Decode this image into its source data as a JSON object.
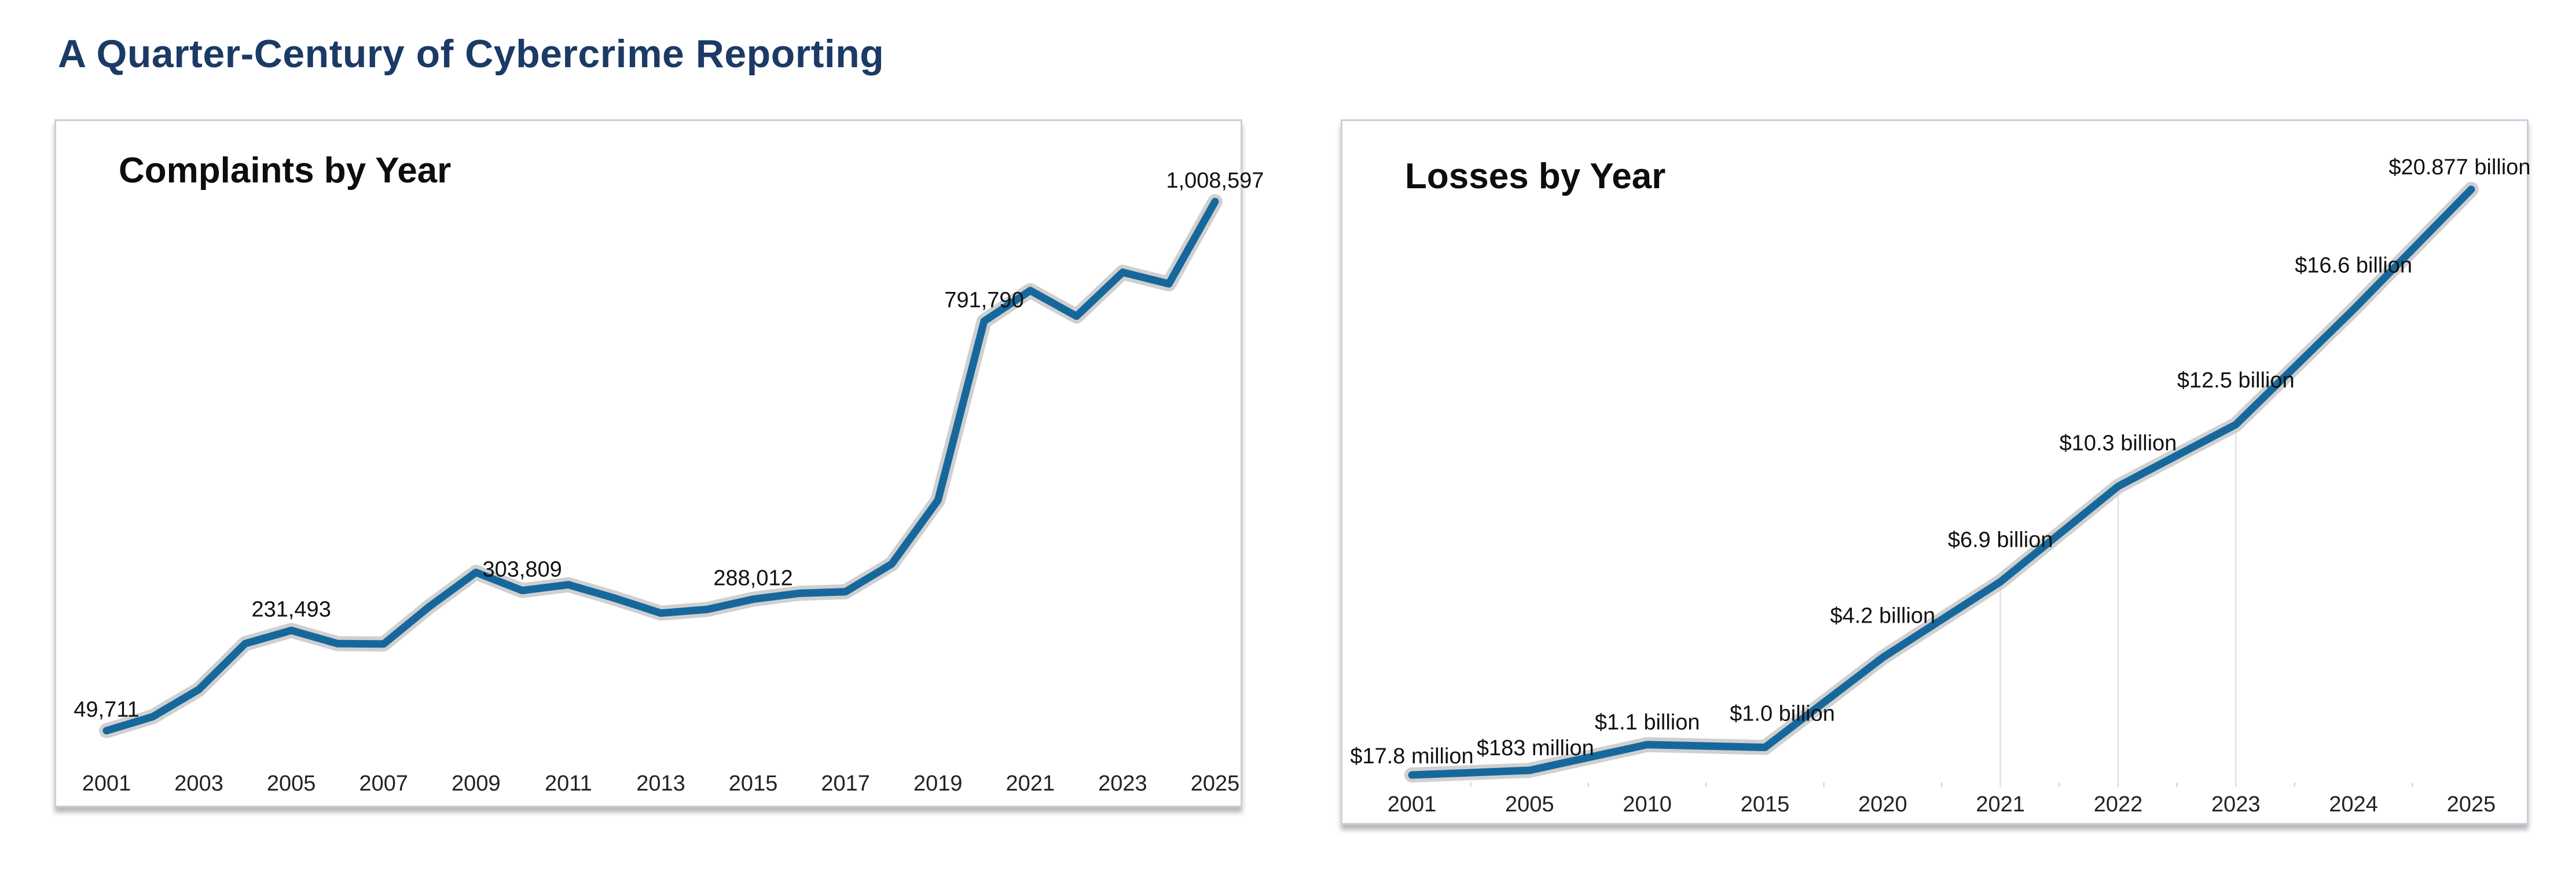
{
  "page": {
    "title": "A Quarter-Century of Cybercrime Reporting"
  },
  "colors": {
    "line": "#16689c",
    "halo": "#c8c8c8",
    "title": "#1b3a66"
  },
  "chart_data": [
    {
      "type": "line",
      "title": "Complaints by Year",
      "xlabel": "",
      "ylabel": "",
      "grid": false,
      "ylim": [
        0,
        1100000
      ],
      "x": [
        2001,
        2002,
        2003,
        2004,
        2005,
        2006,
        2007,
        2008,
        2009,
        2010,
        2011,
        2012,
        2013,
        2014,
        2015,
        2016,
        2017,
        2018,
        2019,
        2020,
        2021,
        2022,
        2023,
        2024,
        2025
      ],
      "tick_labels": [
        "2001",
        "2003",
        "2005",
        "2007",
        "2009",
        "2011",
        "2013",
        "2015",
        "2017",
        "2019",
        "2021",
        "2023",
        "2025"
      ],
      "series": [
        {
          "values": [
            49711,
            75064,
            124515,
            207449,
            231493,
            207492,
            206884,
            275284,
            336655,
            303809,
            314246,
            289874,
            262813,
            269422,
            288012,
            298728,
            301580,
            351937,
            467361,
            791790,
            847376,
            800944,
            880418,
            859532,
            1008597
          ]
        }
      ],
      "data_labels": [
        {
          "index": 0,
          "text": "49,711"
        },
        {
          "index": 4,
          "text": "231,493"
        },
        {
          "index": 9,
          "text": "303,809"
        },
        {
          "index": 14,
          "text": "288,012"
        },
        {
          "index": 19,
          "text": "791,790"
        },
        {
          "index": 24,
          "text": "1,008,597"
        }
      ]
    },
    {
      "type": "line",
      "title": "Losses by Year",
      "xlabel": "",
      "ylabel": "",
      "grid": false,
      "ylim": [
        0,
        21500
      ],
      "x_categories": [
        "2001",
        "2005",
        "2010",
        "2015",
        "2020",
        "2021",
        "2022",
        "2023",
        "2024",
        "2025"
      ],
      "tick_labels": [
        "2001",
        "2005",
        "2010",
        "2015",
        "2020",
        "2021",
        "2022",
        "2023",
        "2024",
        "2025"
      ],
      "series": [
        {
          "values": [
            17.8,
            183,
            1100,
            1000,
            4200,
            6900,
            10300,
            12500,
            16600,
            20877
          ]
        }
      ],
      "data_labels": [
        {
          "index": 0,
          "text": "$17.8 million"
        },
        {
          "index": 1,
          "text": "$183 million"
        },
        {
          "index": 2,
          "text": "$1.1 billion"
        },
        {
          "index": 3,
          "text": "$1.0 billion"
        },
        {
          "index": 4,
          "text": "$4.2 billion"
        },
        {
          "index": 5,
          "text": "$6.9 billion"
        },
        {
          "index": 6,
          "text": "$10.3 billion"
        },
        {
          "index": 7,
          "text": "$12.5 billion"
        },
        {
          "index": 8,
          "text": "$16.6 billion"
        },
        {
          "index": 9,
          "text": "$20.877 billion"
        }
      ]
    }
  ]
}
